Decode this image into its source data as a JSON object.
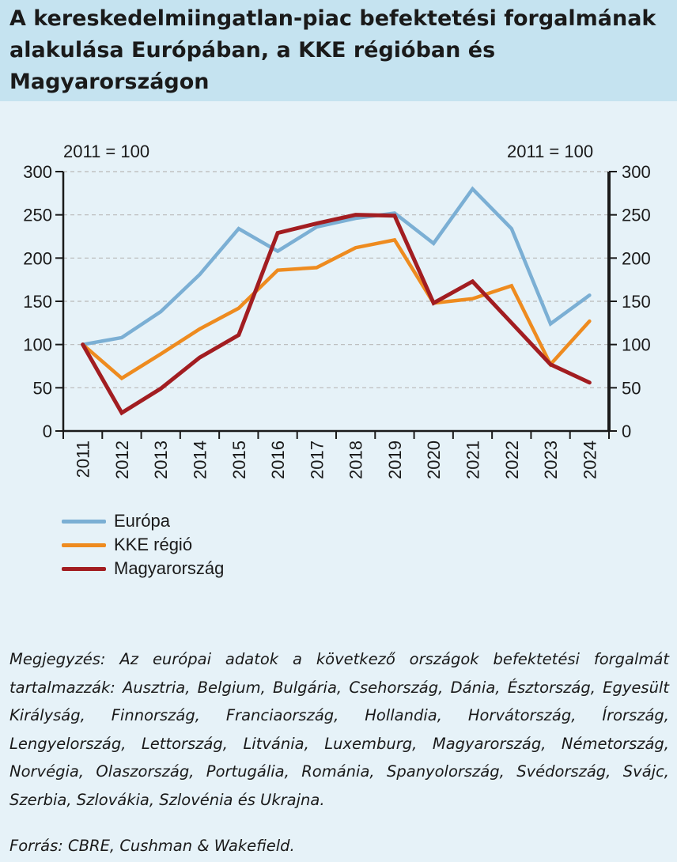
{
  "title": "A kereskedelmiingatlan-piac befektetési forgalmának alakulása Európában, a KKE régióban és Magyarországon",
  "chart_data": {
    "type": "line",
    "unit_left": "2011 = 100",
    "unit_right": "2011 = 100",
    "x": [
      "2011",
      "2012",
      "2013",
      "2014",
      "2015",
      "2016",
      "2017",
      "2018",
      "2019",
      "2020",
      "2021",
      "2022",
      "2023",
      "2024"
    ],
    "ylim": [
      0,
      300
    ],
    "yticks": [
      0,
      50,
      100,
      150,
      200,
      250,
      300
    ],
    "grid": "horizontal",
    "legend_position": "bottom-left",
    "series": [
      {
        "name": "Európa",
        "color": "#7bafd4",
        "values": [
          100,
          108,
          138,
          181,
          234,
          208,
          236,
          246,
          252,
          217,
          280,
          234,
          124,
          157
        ]
      },
      {
        "name": "KKE régió",
        "color": "#ee8b1f",
        "values": [
          100,
          61,
          89,
          118,
          142,
          186,
          189,
          212,
          221,
          148,
          153,
          168,
          77,
          127
        ]
      },
      {
        "name": "Magyarország",
        "color": "#a21d21",
        "values": [
          100,
          21,
          49,
          85,
          111,
          229,
          240,
          250,
          249,
          148,
          173,
          125,
          77,
          56
        ]
      }
    ]
  },
  "note": "Megjegyzés: Az európai adatok a következő országok befektetési forgalmát tartalmazzák: Ausztria, Belgium, Bulgária, Csehország, Dánia, Észtország, Egyesült Királyság, Finnország, Franciaország, Hollandia, Horvátország, Írország, Lengyelország, Lettország, Litvánia, Luxemburg, Magyarország, Németország, Norvégia, Olaszország, Portugália, Románia, Spanyolország, Svédország, Svájc, Szerbia, Szlovákia, Szlovénia és Ukrajna.",
  "source": "Forrás: CBRE, Cushman & Wakefield."
}
